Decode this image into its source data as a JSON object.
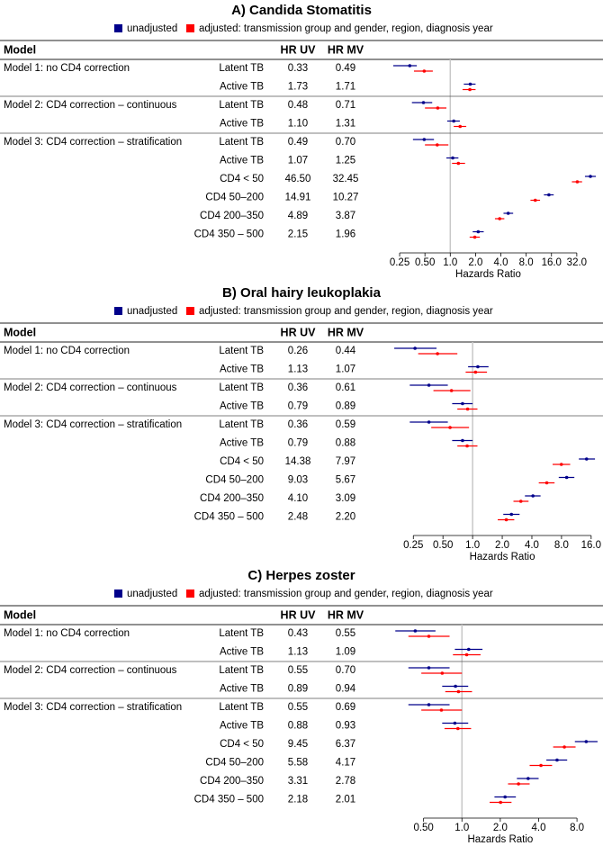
{
  "chart_data": [
    {
      "type": "forest",
      "title": "A) Candida Stomatitis",
      "columns": [
        "Model",
        "HR UV",
        "HR MV"
      ],
      "groups": [
        "Model 1: no CD4 correction",
        null,
        "Model 2: CD4 correction – continuous",
        null,
        "Model 3: CD4 correction – stratification",
        null,
        null,
        null,
        null,
        null
      ],
      "categories": [
        "Latent TB",
        "Active TB",
        "Latent TB",
        "Active TB",
        "Latent TB",
        "Active TB",
        "CD4 < 50",
        "CD4 50–200",
        "CD4 200–350",
        "CD4 350 – 500"
      ],
      "series": [
        {
          "name": "unadjusted",
          "color": "#00008b",
          "values": [
            0.33,
            1.73,
            0.48,
            1.1,
            0.49,
            1.07,
            46.5,
            14.91,
            4.89,
            2.15
          ],
          "value_labels": [
            "0.33",
            "1.73",
            "0.48",
            "1.10",
            "0.49",
            "1.07",
            "46.50",
            "14.91",
            "4.89",
            "2.15"
          ],
          "lower": [
            0.21,
            1.45,
            0.35,
            0.92,
            0.36,
            0.9,
            40,
            13,
            4.3,
            1.85
          ],
          "upper": [
            0.4,
            2.0,
            0.61,
            1.3,
            0.64,
            1.25,
            54,
            17,
            5.6,
            2.5
          ]
        },
        {
          "name": "adjusted: transmission group and gender, region, diagnosis year",
          "color": "#ff0000",
          "values": [
            0.49,
            1.71,
            0.71,
            1.31,
            0.7,
            1.25,
            32.45,
            10.27,
            3.87,
            1.96
          ],
          "value_labels": [
            "0.49",
            "1.71",
            "0.71",
            "1.31",
            "0.70",
            "1.25",
            "32.45",
            "10.27",
            "3.87",
            "1.96"
          ],
          "lower": [
            0.37,
            1.4,
            0.5,
            1.1,
            0.5,
            1.05,
            28,
            9,
            3.4,
            1.7
          ],
          "upper": [
            0.62,
            2.0,
            0.9,
            1.55,
            0.95,
            1.5,
            37,
            11.7,
            4.4,
            2.25
          ]
        }
      ],
      "log_scale": true,
      "xlim": [
        0.2,
        58
      ],
      "reference": 1,
      "xticks": [
        0.25,
        {
          "value": 0.5,
          "label": "0.50"
        },
        {
          "value": 1,
          "label": "1.0"
        },
        {
          "value": 2,
          "label": "2.0"
        },
        {
          "value": 4,
          "label": "4.0"
        },
        {
          "value": 8,
          "label": "8.0"
        },
        {
          "value": 16,
          "label": "16.0"
        },
        {
          "value": 32,
          "label": "32.0"
        }
      ],
      "x_label": "Hazards Ratio"
    },
    {
      "type": "forest",
      "title": "B) Oral hairy leukoplakia",
      "columns": [
        "Model",
        "HR UV",
        "HR MV"
      ],
      "groups": [
        "Model 1: no CD4 correction",
        null,
        "Model 2: CD4 correction – continuous",
        null,
        "Model 3: CD4 correction – stratification",
        null,
        null,
        null,
        null,
        null
      ],
      "categories": [
        "Latent TB",
        "Active TB",
        "Latent TB",
        "Active TB",
        "Latent TB",
        "Active TB",
        "CD4 < 50",
        "CD4 50–200",
        "CD4 200–350",
        "CD4 350 – 500"
      ],
      "series": [
        {
          "name": "unadjusted",
          "color": "#00008b",
          "values": [
            0.26,
            1.13,
            0.36,
            0.79,
            0.36,
            0.79,
            14.38,
            9.03,
            4.1,
            2.48
          ],
          "value_labels": [
            "0.26",
            "1.13",
            "0.36",
            "0.79",
            "0.36",
            "0.79",
            "14.38",
            "9.03",
            "4.10",
            "2.48"
          ],
          "lower": [
            0.16,
            0.9,
            0.23,
            0.62,
            0.23,
            0.62,
            12,
            7.5,
            3.4,
            2.05
          ],
          "upper": [
            0.43,
            1.45,
            0.56,
            1.0,
            0.56,
            1.0,
            17.5,
            10.8,
            4.9,
            3.0
          ]
        },
        {
          "name": "adjusted: transmission group and gender, region, diagnosis year",
          "color": "#ff0000",
          "values": [
            0.44,
            1.07,
            0.61,
            0.89,
            0.59,
            0.88,
            7.97,
            5.67,
            3.09,
            2.2
          ],
          "value_labels": [
            "0.44",
            "1.07",
            "0.61",
            "0.89",
            "0.59",
            "0.88",
            "7.97",
            "5.67",
            "3.09",
            "2.20"
          ],
          "lower": [
            0.28,
            0.85,
            0.4,
            0.7,
            0.38,
            0.7,
            6.5,
            4.7,
            2.6,
            1.8
          ],
          "upper": [
            0.7,
            1.4,
            0.95,
            1.12,
            0.92,
            1.12,
            9.8,
            6.8,
            3.7,
            2.65
          ]
        }
      ],
      "log_scale": true,
      "xlim": [
        0.15,
        19
      ],
      "reference": 1,
      "xticks": [
        0.25,
        {
          "value": 0.5,
          "label": "0.50"
        },
        {
          "value": 1,
          "label": "1.0"
        },
        {
          "value": 2,
          "label": "2.0"
        },
        {
          "value": 4,
          "label": "4.0"
        },
        {
          "value": 8,
          "label": "8.0"
        },
        {
          "value": 16,
          "label": "16.0"
        }
      ],
      "x_label": "Hazards Ratio"
    },
    {
      "type": "forest",
      "title": "C) Herpes zoster",
      "columns": [
        "Model",
        "HR UV",
        "HR MV"
      ],
      "groups": [
        "Model 1: no CD4 correction",
        null,
        "Model 2: CD4 correction – continuous",
        null,
        "Model 3: CD4 correction – stratification",
        null,
        null,
        null,
        null,
        null
      ],
      "categories": [
        "Latent TB",
        "Active TB",
        "Latent TB",
        "Active TB",
        "Latent TB",
        "Active TB",
        "CD4 < 50",
        "CD4 50–200",
        "CD4 200–350",
        "CD4 350 – 500"
      ],
      "series": [
        {
          "name": "unadjusted",
          "color": "#00008b",
          "values": [
            0.43,
            1.13,
            0.55,
            0.89,
            0.55,
            0.88,
            9.45,
            5.58,
            3.31,
            2.18
          ],
          "value_labels": [
            "0.43",
            "1.13",
            "0.55",
            "0.89",
            "0.55",
            "0.88",
            "9.45",
            "5.58",
            "3.31",
            "2.18"
          ],
          "lower": [
            0.3,
            0.88,
            0.38,
            0.7,
            0.38,
            0.7,
            7.7,
            4.6,
            2.7,
            1.8
          ],
          "upper": [
            0.62,
            1.45,
            0.8,
            1.12,
            0.8,
            1.12,
            11.6,
            6.7,
            4.0,
            2.65
          ]
        },
        {
          "name": "adjusted: transmission group and gender, region, diagnosis year",
          "color": "#ff0000",
          "values": [
            0.55,
            1.09,
            0.7,
            0.94,
            0.69,
            0.93,
            6.37,
            4.17,
            2.78,
            2.01
          ],
          "value_labels": [
            "0.55",
            "1.09",
            "0.70",
            "0.94",
            "0.69",
            "0.93",
            "6.37",
            "4.17",
            "2.78",
            "2.01"
          ],
          "lower": [
            0.38,
            0.85,
            0.48,
            0.74,
            0.48,
            0.73,
            5.2,
            3.4,
            2.3,
            1.65
          ],
          "upper": [
            0.8,
            1.4,
            1.0,
            1.2,
            1.0,
            1.18,
            7.8,
            5.1,
            3.4,
            2.45
          ]
        }
      ],
      "log_scale": true,
      "xlim": [
        0.28,
        11.8
      ],
      "reference": 1,
      "xticks": [
        {
          "value": 0.5,
          "label": "0.50"
        },
        {
          "value": 1,
          "label": "1.0"
        },
        {
          "value": 2,
          "label": "2.0"
        },
        {
          "value": 4,
          "label": "4.0"
        },
        {
          "value": 8,
          "label": "8.0"
        }
      ],
      "x_label": "Hazards Ratio"
    }
  ]
}
